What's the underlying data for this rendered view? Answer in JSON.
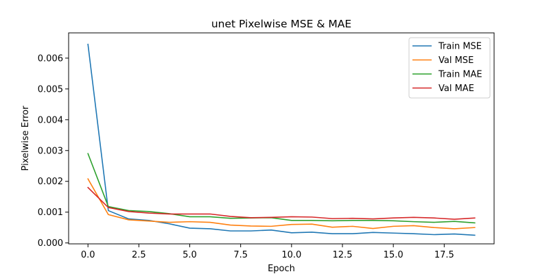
{
  "chart_data": {
    "type": "line",
    "title": "unet Pixelwise MSE & MAE",
    "xlabel": "Epoch",
    "ylabel": "Pixelwise Error",
    "xlim": [
      -0.95,
      19.95
    ],
    "ylim": [
      -3e-05,
      0.00682
    ],
    "xticks": [
      0.0,
      2.5,
      5.0,
      7.5,
      10.0,
      12.5,
      15.0,
      17.5
    ],
    "xtick_labels": [
      "0.0",
      "2.5",
      "5.0",
      "7.5",
      "10.0",
      "12.5",
      "15.0",
      "17.5"
    ],
    "yticks": [
      0.0,
      0.001,
      0.002,
      0.003,
      0.004,
      0.005,
      0.006
    ],
    "ytick_labels": [
      "0.000",
      "0.001",
      "0.002",
      "0.003",
      "0.004",
      "0.005",
      "0.006"
    ],
    "grid": false,
    "legend_position": "top-right",
    "x": [
      0,
      1,
      2,
      3,
      4,
      5,
      6,
      7,
      8,
      9,
      10,
      11,
      12,
      13,
      14,
      15,
      16,
      17,
      18,
      19
    ],
    "series": [
      {
        "name": "Train MSE",
        "color": "#1f77b4",
        "values": [
          0.00645,
          0.00105,
          0.00078,
          0.00073,
          0.00062,
          0.00048,
          0.00046,
          0.00039,
          0.00039,
          0.00042,
          0.00033,
          0.00035,
          0.0003,
          0.0003,
          0.00034,
          0.00032,
          0.0003,
          0.00027,
          0.00029,
          0.00025
        ]
      },
      {
        "name": "Val MSE",
        "color": "#ff7f0e",
        "values": [
          0.00208,
          0.00092,
          0.00075,
          0.00071,
          0.00067,
          0.00069,
          0.00067,
          0.00058,
          0.00055,
          0.00054,
          0.0006,
          0.00061,
          0.00051,
          0.00054,
          0.00047,
          0.00054,
          0.00056,
          0.0005,
          0.00046,
          0.0005
        ]
      },
      {
        "name": "Train MAE",
        "color": "#2ca02c",
        "values": [
          0.0029,
          0.00118,
          0.00105,
          0.00102,
          0.00095,
          0.00085,
          0.00085,
          0.0008,
          0.00081,
          0.00082,
          0.00073,
          0.00073,
          0.00072,
          0.00073,
          0.00073,
          0.00072,
          0.00069,
          0.00067,
          0.0007,
          0.00065
        ]
      },
      {
        "name": "Val MAE",
        "color": "#d62728",
        "values": [
          0.0018,
          0.00115,
          0.00102,
          0.00097,
          0.00094,
          0.00094,
          0.00094,
          0.00086,
          0.00082,
          0.00083,
          0.00085,
          0.00084,
          0.00079,
          0.0008,
          0.00078,
          0.00081,
          0.00083,
          0.00081,
          0.00077,
          0.00081
        ]
      }
    ]
  }
}
